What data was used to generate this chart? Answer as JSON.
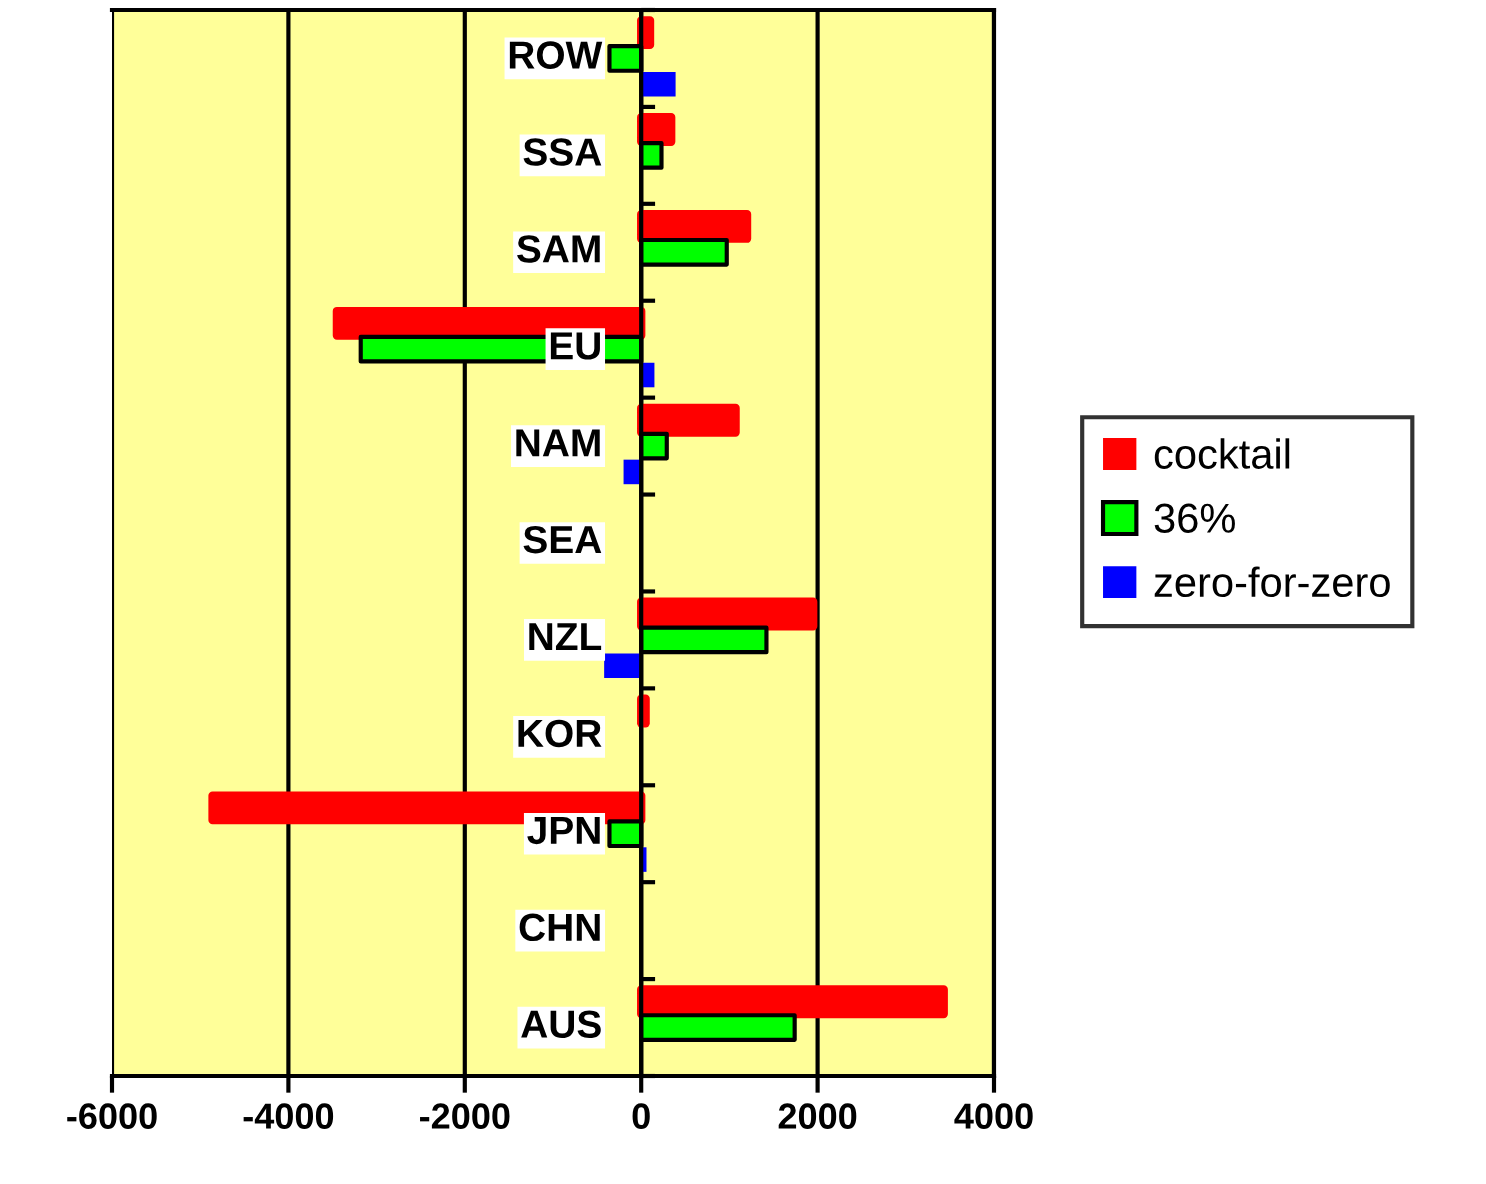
{
  "chart_data": {
    "type": "bar",
    "orientation": "horizontal",
    "categories": [
      "ROW",
      "SSA",
      "SAM",
      "EU",
      "NAM",
      "SEA",
      "NZL",
      "KOR",
      "JPN",
      "CHN",
      "AUS"
    ],
    "series": [
      {
        "name": "cocktail",
        "color": "#ff0000",
        "values": [
          100,
          340,
          1200,
          -3450,
          1070,
          null,
          1950,
          50,
          -4860,
          null,
          3430
        ]
      },
      {
        "name": "36%",
        "color": "#00ff00",
        "values": [
          -360,
          230,
          970,
          -3180,
          290,
          null,
          1420,
          null,
          -360,
          null,
          1740
        ]
      },
      {
        "name": "zero-for-zero",
        "color": "#0000ff",
        "values": [
          390,
          null,
          null,
          150,
          -200,
          null,
          -420,
          null,
          60,
          null,
          null
        ]
      }
    ],
    "xlim": [
      -6000,
      4000
    ],
    "xticks": [
      -6000,
      -4000,
      -2000,
      0,
      2000,
      4000
    ],
    "grid": "x",
    "legend": "right"
  }
}
